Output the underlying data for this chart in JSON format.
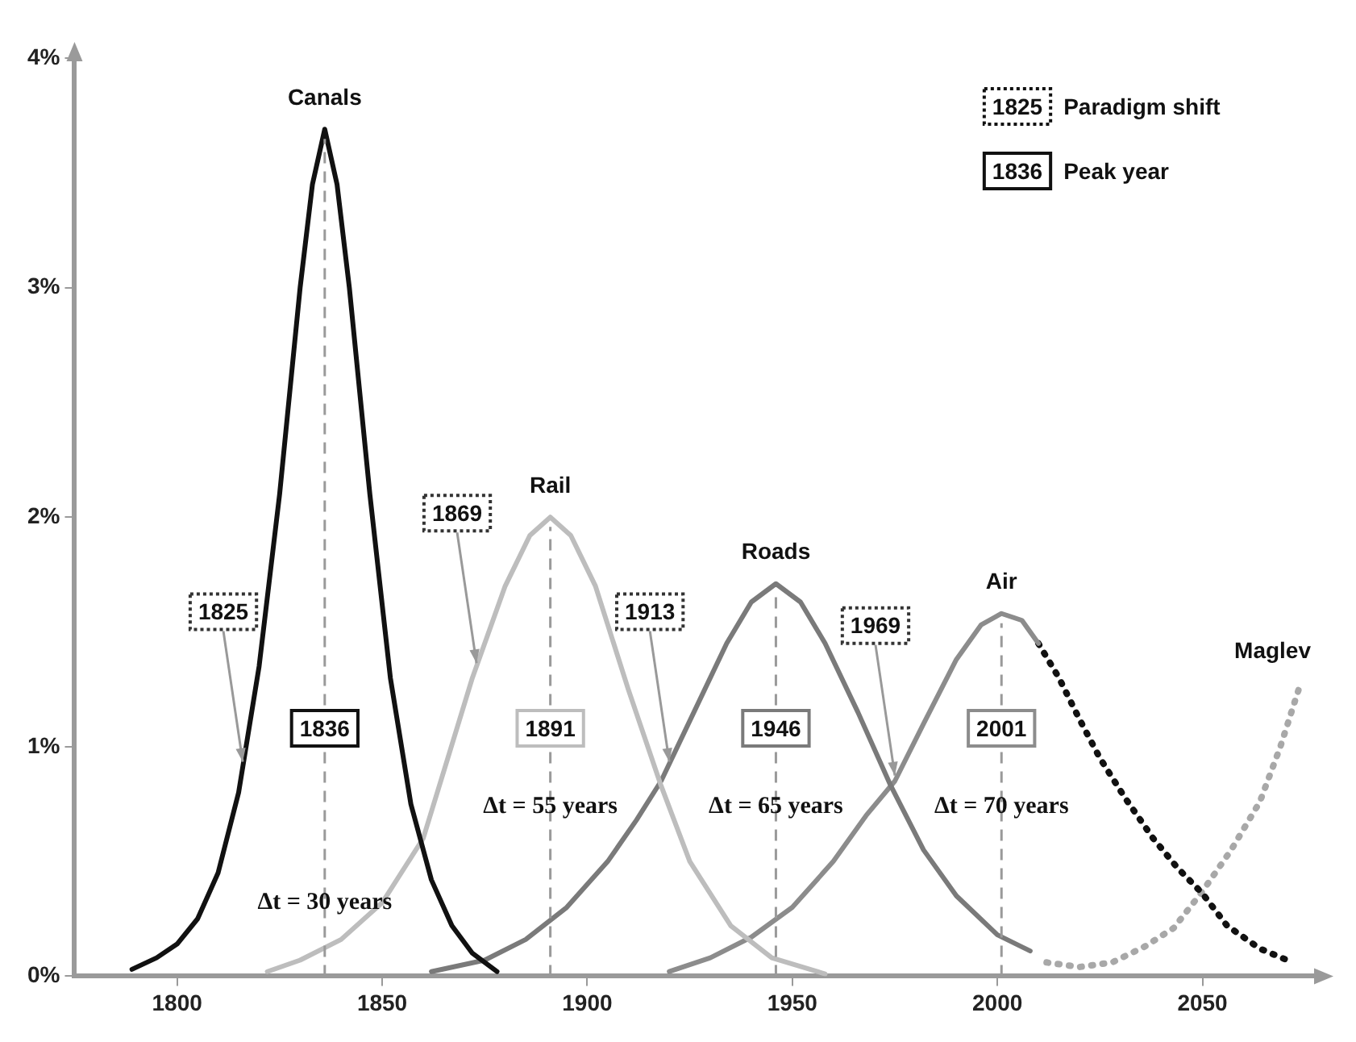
{
  "chart_data": {
    "type": "line",
    "xlim": [
      1775,
      2078
    ],
    "xticks": [
      1800,
      1850,
      1900,
      1950,
      2000,
      2050
    ],
    "ylim": [
      0,
      4
    ],
    "yticks": [
      {
        "value": 0,
        "label": "0%"
      },
      {
        "value": 1,
        "label": "1%"
      },
      {
        "value": 2,
        "label": "2%"
      },
      {
        "value": 3,
        "label": "3%"
      },
      {
        "value": 4,
        "label": "4%"
      }
    ],
    "grid": false,
    "marker": "none",
    "line_style": "solid",
    "series": [
      {
        "name": "Canals",
        "color": "#111111",
        "x": [
          1789,
          1795,
          1800,
          1805,
          1810,
          1815,
          1820,
          1825,
          1830,
          1833,
          1836,
          1839,
          1842,
          1847,
          1852,
          1857,
          1862,
          1867,
          1872,
          1878
        ],
        "values": [
          0.03,
          0.08,
          0.14,
          0.25,
          0.45,
          0.8,
          1.35,
          2.1,
          3.0,
          3.45,
          3.69,
          3.45,
          3.0,
          2.1,
          1.3,
          0.75,
          0.42,
          0.22,
          0.1,
          0.02
        ]
      },
      {
        "name": "Rail",
        "color": "#bdbdbd",
        "x": [
          1822,
          1830,
          1840,
          1850,
          1860,
          1866,
          1872,
          1880,
          1886,
          1891,
          1896,
          1902,
          1910,
          1918,
          1925,
          1935,
          1945,
          1958
        ],
        "values": [
          0.02,
          0.07,
          0.16,
          0.32,
          0.6,
          0.95,
          1.3,
          1.7,
          1.92,
          2.0,
          1.92,
          1.7,
          1.25,
          0.83,
          0.5,
          0.22,
          0.08,
          0.01
        ]
      },
      {
        "name": "Roads",
        "color": "#7a7a7a",
        "x": [
          1862,
          1875,
          1885,
          1895,
          1905,
          1912,
          1918,
          1926,
          1934,
          1940,
          1946,
          1952,
          1958,
          1966,
          1974,
          1982,
          1990,
          2000,
          2008
        ],
        "values": [
          0.02,
          0.07,
          0.16,
          0.3,
          0.5,
          0.68,
          0.85,
          1.15,
          1.45,
          1.63,
          1.71,
          1.63,
          1.45,
          1.15,
          0.83,
          0.55,
          0.35,
          0.18,
          0.11
        ]
      },
      {
        "name": "Air",
        "color": "#8c8c8c",
        "x": [
          1920,
          1930,
          1940,
          1950,
          1960,
          1968,
          1975,
          1982,
          1990,
          1996,
          2001,
          2006,
          2010
        ],
        "values": [
          0.02,
          0.08,
          0.17,
          0.3,
          0.5,
          0.7,
          0.85,
          1.1,
          1.38,
          1.53,
          1.58,
          1.55,
          1.45
        ]
      },
      {
        "color": "#111111",
        "line_style": "dotted",
        "x": [
          2010,
          2015,
          2020,
          2025,
          2031,
          2038,
          2044,
          2050,
          2056,
          2064,
          2072
        ],
        "values": [
          1.45,
          1.3,
          1.12,
          0.95,
          0.78,
          0.6,
          0.47,
          0.36,
          0.22,
          0.12,
          0.06
        ]
      },
      {
        "name": "Maglev",
        "color": "#a8a8a8",
        "line_style": "dotted",
        "x": [
          2012,
          2020,
          2028,
          2036,
          2043,
          2050,
          2057,
          2064,
          2069,
          2074
        ],
        "values": [
          0.06,
          0.04,
          0.06,
          0.13,
          0.21,
          0.37,
          0.55,
          0.76,
          1.0,
          1.28
        ]
      }
    ],
    "ref_lines": [
      {
        "axis": "x",
        "value": 1836,
        "label": "1836",
        "color": "#9a9a9a",
        "line_style": "dashed"
      },
      {
        "axis": "x",
        "value": 1891,
        "label": "1891",
        "color": "#9a9a9a",
        "line_style": "dashed"
      },
      {
        "axis": "x",
        "value": 1946,
        "label": "1946",
        "color": "#9a9a9a",
        "line_style": "dashed"
      },
      {
        "axis": "x",
        "value": 2001,
        "label": "2001",
        "color": "#9a9a9a",
        "line_style": "dashed"
      }
    ],
    "annotations": [
      "1825 Paradigm shift",
      "1836 Peak year",
      {
        "text": "1825",
        "x": 1816,
        "y": 0.92
      },
      {
        "text": "1869",
        "x": 1873,
        "y": 1.35
      },
      {
        "text": "1913",
        "x": 1920,
        "y": 0.92
      },
      {
        "text": "1969",
        "x": 1975,
        "y": 0.86
      },
      {
        "text": "Δt = 30 years",
        "x": 1836,
        "y": 0.32
      },
      {
        "text": "Δt = 55 years",
        "x": 1891,
        "y": 0.74
      },
      {
        "text": "Δt = 65 years",
        "x": 1946,
        "y": 0.74
      },
      {
        "text": "Δt = 70 years",
        "x": 2001,
        "y": 0.74
      }
    ]
  }
}
